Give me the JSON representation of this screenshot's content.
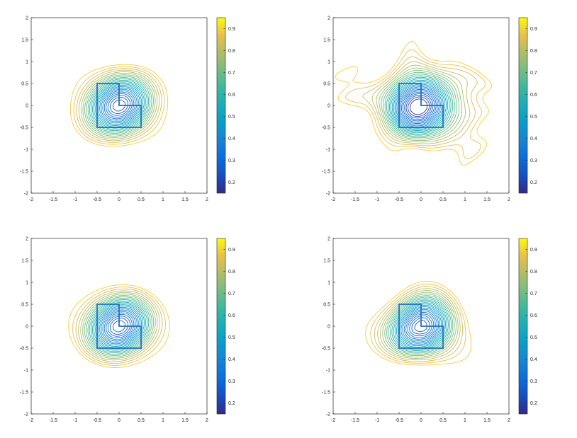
{
  "chart_data": [
    {
      "type": "contour",
      "panel": "top-left",
      "xlim": [
        -2,
        2
      ],
      "ylim": [
        -2,
        2
      ],
      "x_ticks": [
        "-2",
        "-1.5",
        "-1",
        "-0.5",
        "0",
        "0.5",
        "1",
        "1.5",
        "2"
      ],
      "y_ticks": [
        "2",
        "1.5",
        "1",
        "0.5",
        "0",
        "-0.5",
        "-1",
        "-1.5",
        "-2"
      ],
      "colorbar_ticks": [
        "0.9",
        "0.8",
        "0.7",
        "0.6",
        "0.5",
        "0.4",
        "0.3",
        "0.2"
      ],
      "colorbar_range": [
        0.15,
        0.95
      ],
      "colormap": "parula",
      "contour_levels": 26,
      "variant": "smooth",
      "outline_polygon": [
        [
          -0.5,
          0.5
        ],
        [
          0,
          0.5
        ],
        [
          0,
          0
        ],
        [
          0.5,
          0
        ],
        [
          0.5,
          -0.5
        ],
        [
          -0.5,
          -0.5
        ]
      ],
      "outline_color": "#1f6fc0"
    },
    {
      "type": "contour",
      "panel": "top-right",
      "xlim": [
        -2,
        2
      ],
      "ylim": [
        -2,
        2
      ],
      "x_ticks": [
        "-2",
        "-1.5",
        "-1",
        "-0.5",
        "0",
        "0.5",
        "1",
        "1.5",
        "2"
      ],
      "y_ticks": [
        "2",
        "1.5",
        "1",
        "0.5",
        "0",
        "-0.5",
        "-1",
        "-1.5",
        "-2"
      ],
      "colorbar_ticks": [
        "0.9",
        "0.8",
        "0.7",
        "0.6",
        "0.5",
        "0.4",
        "0.3",
        "0.2"
      ],
      "colorbar_range": [
        0.15,
        0.95
      ],
      "colormap": "parula",
      "contour_levels": 26,
      "variant": "noisy",
      "outline_polygon": [
        [
          -0.5,
          0.5
        ],
        [
          0,
          0.5
        ],
        [
          0,
          0
        ],
        [
          0.5,
          0
        ],
        [
          0.5,
          -0.5
        ],
        [
          -0.5,
          -0.5
        ]
      ],
      "outline_color": "#1f6fc0"
    },
    {
      "type": "contour",
      "panel": "bottom-left",
      "xlim": [
        -2,
        2
      ],
      "ylim": [
        -2,
        2
      ],
      "x_ticks": [
        "-2",
        "-1.5",
        "-1",
        "-0.5",
        "0",
        "0.5",
        "1",
        "1.5",
        "2"
      ],
      "y_ticks": [
        "2",
        "1.5",
        "1",
        "0.5",
        "0",
        "-0.5",
        "-1",
        "-1.5",
        "-2"
      ],
      "colorbar_ticks": [
        "0.9",
        "0.8",
        "0.7",
        "0.6",
        "0.5",
        "0.4",
        "0.3",
        "0.2"
      ],
      "colorbar_range": [
        0.15,
        0.95
      ],
      "colormap": "parula",
      "contour_levels": 26,
      "variant": "smooth-wide",
      "outline_polygon": [
        [
          -0.5,
          0.5
        ],
        [
          0,
          0.5
        ],
        [
          0,
          0
        ],
        [
          0.5,
          0
        ],
        [
          0.5,
          -0.5
        ],
        [
          -0.5,
          -0.5
        ]
      ],
      "outline_color": "#1f6fc0"
    },
    {
      "type": "contour",
      "panel": "bottom-right",
      "xlim": [
        -2,
        2
      ],
      "ylim": [
        -2,
        2
      ],
      "x_ticks": [
        "-2",
        "-1.5",
        "-1",
        "-0.5",
        "0",
        "0.5",
        "1",
        "1.5",
        "2"
      ],
      "y_ticks": [
        "2",
        "1.5",
        "1",
        "0.5",
        "0",
        "-0.5",
        "-1",
        "-1.5",
        "-2"
      ],
      "colorbar_ticks": [
        "0.9",
        "0.8",
        "0.7",
        "0.6",
        "0.5",
        "0.4",
        "0.3",
        "0.2"
      ],
      "colorbar_range": [
        0.15,
        0.95
      ],
      "colormap": "parula",
      "contour_levels": 26,
      "variant": "lobed",
      "outline_polygon": [
        [
          -0.5,
          0.5
        ],
        [
          0,
          0.5
        ],
        [
          0,
          0
        ],
        [
          0.5,
          0
        ],
        [
          0.5,
          -0.5
        ],
        [
          -0.5,
          -0.5
        ]
      ],
      "outline_color": "#1f6fc0"
    }
  ]
}
